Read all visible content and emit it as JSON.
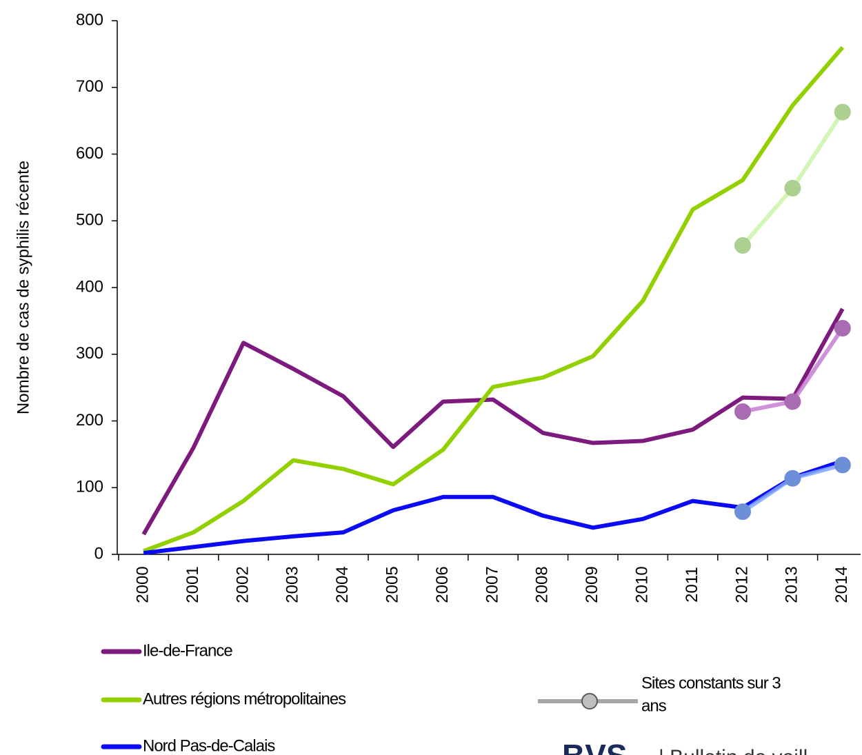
{
  "chart_data": {
    "type": "line",
    "y_label": "Nombre de cas de syphilis récente",
    "categories": [
      "2000",
      "2001",
      "2002",
      "2003",
      "2004",
      "2005",
      "2006",
      "2007",
      "2008",
      "2009",
      "2010",
      "2011",
      "2012",
      "2013",
      "2014"
    ],
    "ylim": [
      0,
      800
    ],
    "yticks": [
      0,
      100,
      200,
      300,
      400,
      500,
      600,
      700,
      800
    ],
    "series": [
      {
        "name": "Ile-de-France",
        "color": "#7d1a7d",
        "values": [
          30,
          160,
          317,
          278,
          237,
          161,
          229,
          232,
          182,
          167,
          170,
          187,
          235,
          233,
          368
        ]
      },
      {
        "name": "Autres régions  métropolitaines",
        "color": "#92d000",
        "values": [
          5,
          33,
          80,
          141,
          128,
          105,
          157,
          251,
          265,
          297,
          380,
          517,
          561,
          673,
          760
        ]
      },
      {
        "name": "Nord Pas-de-Calais",
        "color": "#0a0af5",
        "values": [
          2,
          11,
          20,
          27,
          33,
          66,
          86,
          86,
          58,
          40,
          53,
          80,
          70,
          115,
          140
        ]
      }
    ],
    "constant_sites": [
      {
        "color": "#c77fd3",
        "values": [
          null,
          null,
          null,
          null,
          null,
          null,
          null,
          null,
          null,
          null,
          null,
          null,
          214,
          229,
          339
        ]
      },
      {
        "color": "#c9f5a8",
        "values": [
          null,
          null,
          null,
          null,
          null,
          null,
          null,
          null,
          null,
          null,
          null,
          null,
          463,
          549,
          663
        ]
      },
      {
        "color": "#80a8ff",
        "values": [
          null,
          null,
          null,
          null,
          null,
          null,
          null,
          null,
          null,
          null,
          null,
          null,
          64,
          114,
          134
        ]
      }
    ],
    "constant_sites_legend": {
      "lines": [
        "Sites constants sur 3",
        "ans"
      ],
      "color": "#a6a6a6"
    },
    "footer": {
      "logo": "BVS",
      "text": "| Bulletin de veill"
    }
  }
}
